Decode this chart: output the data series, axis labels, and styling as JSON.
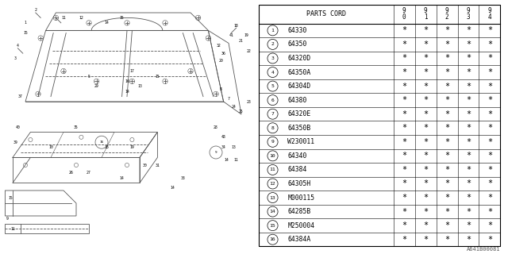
{
  "watermark": "A641B00081",
  "rows": [
    [
      1,
      "64330"
    ],
    [
      2,
      "64350"
    ],
    [
      3,
      "64320D"
    ],
    [
      4,
      "64350A"
    ],
    [
      5,
      "64304D"
    ],
    [
      6,
      "64380"
    ],
    [
      7,
      "64320E"
    ],
    [
      8,
      "64350B"
    ],
    [
      9,
      "W230011"
    ],
    [
      10,
      "64340"
    ],
    [
      11,
      "64384"
    ],
    [
      12,
      "64305H"
    ],
    [
      13,
      "M000115"
    ],
    [
      14,
      "64285B"
    ],
    [
      15,
      "M250004"
    ],
    [
      16,
      "64384A"
    ]
  ],
  "year_headers": [
    "9\n0",
    "9\n1",
    "9\n2",
    "9\n3",
    "9\n4"
  ],
  "bg_color": "#ffffff",
  "line_color": "#000000",
  "text_color": "#000000",
  "diagram_line_color": "#555555"
}
